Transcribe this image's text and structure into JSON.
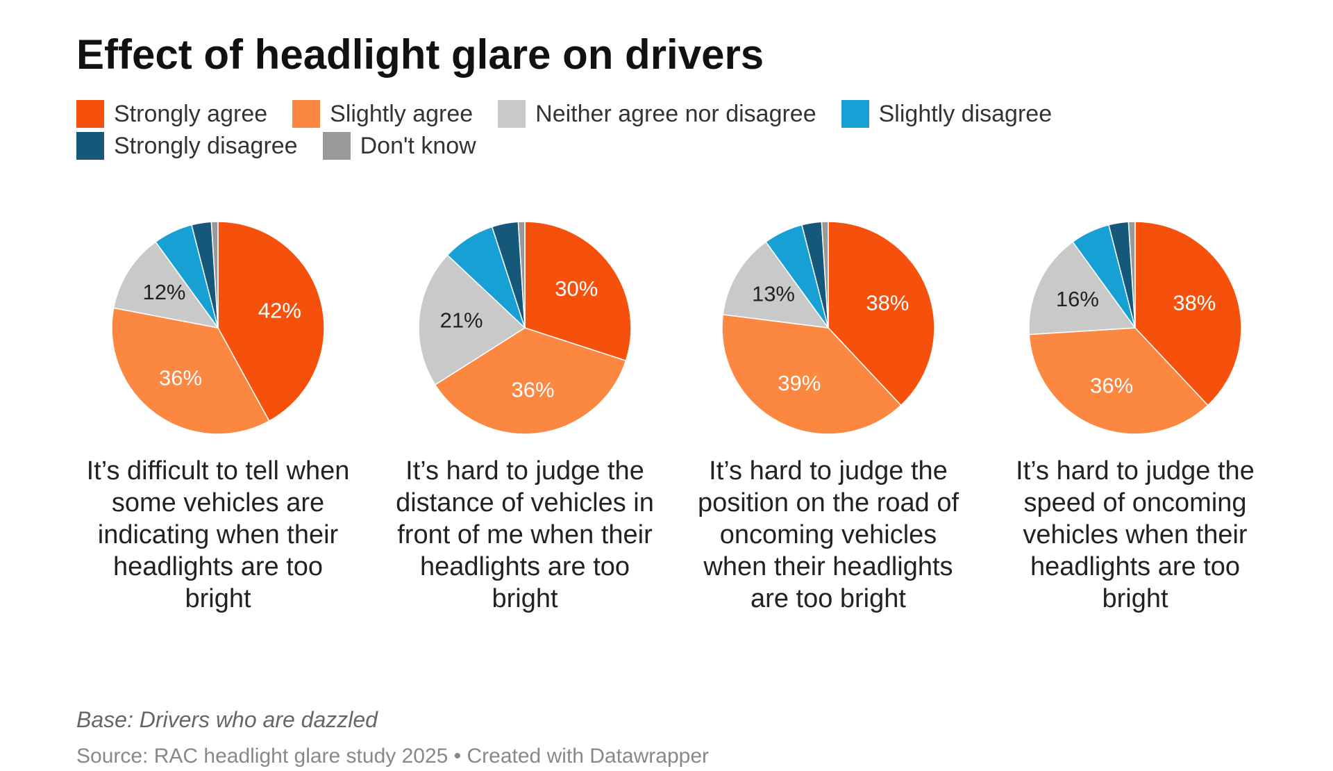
{
  "title": "Effect of headlight glare on drivers",
  "legend": [
    {
      "name": "Strongly agree",
      "color": "#f5510c"
    },
    {
      "name": "Slightly agree",
      "color": "#fc8741"
    },
    {
      "name": "Neither agree nor disagree",
      "color": "#c9c9c9"
    },
    {
      "name": "Slightly disagree",
      "color": "#17a0d3"
    },
    {
      "name": "Strongly disagree",
      "color": "#15587a"
    },
    {
      "name": "Don't know",
      "color": "#999999"
    }
  ],
  "chart_data": [
    {
      "type": "pie",
      "title": "It’s difficult to tell when some vehicles are indicating when their headlights are too bright",
      "values": [
        42,
        36,
        12,
        6,
        3,
        1
      ],
      "value_labels": [
        "42%",
        "36%",
        "12%",
        null,
        null,
        null
      ]
    },
    {
      "type": "pie",
      "title": "It’s hard to judge the distance of vehicles in front of me when their headlights are too bright",
      "values": [
        30,
        36,
        21,
        8,
        4,
        1
      ],
      "value_labels": [
        "30%",
        "36%",
        "21%",
        null,
        null,
        null
      ]
    },
    {
      "type": "pie",
      "title": "It’s hard to judge the position on the road of oncoming vehicles when their headlights are too bright",
      "values": [
        38,
        39,
        13,
        6,
        3,
        1
      ],
      "value_labels": [
        "38%",
        "39%",
        "13%",
        null,
        null,
        null
      ]
    },
    {
      "type": "pie",
      "title": "It’s hard to judge the speed of oncoming vehicles when their headlights are too bright",
      "values": [
        38,
        36,
        16,
        6,
        3,
        1
      ],
      "value_labels": [
        "38%",
        "36%",
        "16%",
        null,
        null,
        null
      ]
    }
  ],
  "note": "Base: Drivers who are dazzled",
  "source": "Source: RAC headlight glare study 2025 • Created with Datawrapper"
}
